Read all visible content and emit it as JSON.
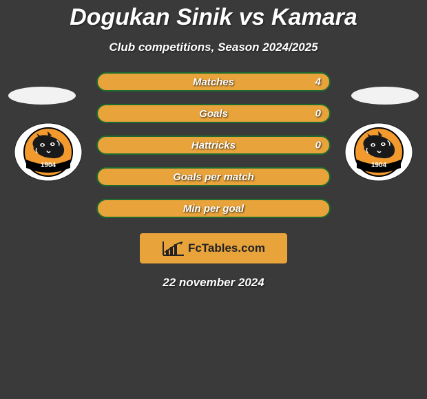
{
  "title": "Dogukan Sinik vs Kamara",
  "subtitle": "Club competitions, Season 2024/2025",
  "date": "22 november 2024",
  "colors": {
    "background": "#3a3a3a",
    "pill_fill": "#e8a33a",
    "pill_border": "#1f6b2f",
    "text": "#ffffff",
    "ellipse": "#f2f2f2",
    "fctables_bg": "#e8a33a",
    "fctables_text": "#222222",
    "badge_outer_bg": "#ffffff",
    "badge_outer_border": "#222222",
    "badge_inner_bg": "#f29a2e",
    "badge_inner_border": "#000000",
    "badge_banner": "#000000",
    "badge_banner_text": "#ffffff",
    "badge_tiger": "#1a1a1a",
    "badge_tiger_accent": "#ffffff"
  },
  "stats": [
    {
      "label": "Matches",
      "value": "4"
    },
    {
      "label": "Goals",
      "value": "0"
    },
    {
      "label": "Hattricks",
      "value": "0"
    },
    {
      "label": "Goals per match",
      "value": ""
    },
    {
      "label": "Min per goal",
      "value": ""
    }
  ],
  "badge": {
    "year": "1904"
  },
  "fctables_label": "FcTables.com",
  "style": {
    "pill_height": 28,
    "pill_border_width": 2,
    "pill_radius": 14,
    "title_fontsize": 34,
    "subtitle_fontsize": 17,
    "stat_fontsize": 15,
    "date_fontsize": 17,
    "stats_width": 340,
    "stats_gap": 18
  }
}
